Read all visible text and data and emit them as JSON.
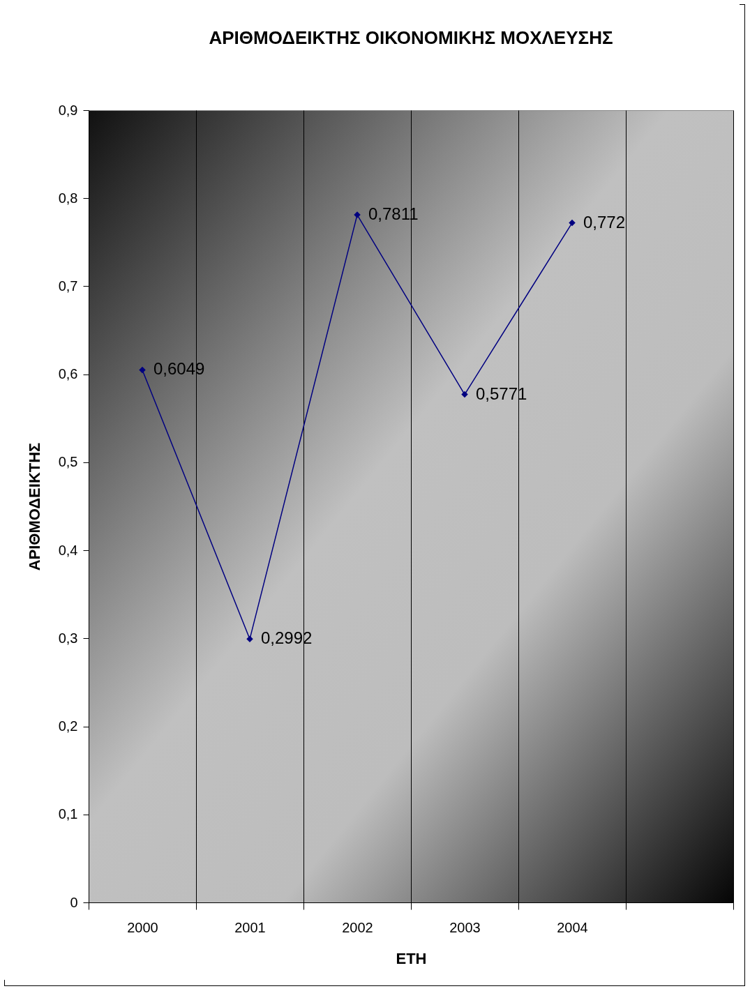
{
  "chart_data": {
    "type": "line",
    "title": "ΑΡΙΘΜΟΔΕΙΚΤΗΣ ΟΙΚΟΝΟΜΙΚΗΣ ΜΟΧΛΕΥΣΗΣ",
    "xlabel": "ΕΤΗ",
    "ylabel": "ΑΡΙΘΜΟΔΕΙΚΤΗΣ",
    "categories": [
      "2000",
      "2001",
      "2002",
      "2003",
      "2004",
      null
    ],
    "series": [
      {
        "color": "#000080",
        "values": [
          0.6049,
          0.2992,
          0.7811,
          0.5771,
          0.772,
          null
        ],
        "value_labels": [
          "0,6049",
          "0,2992",
          "0,7811",
          "0,5771",
          "0,772",
          null
        ]
      }
    ],
    "ylim": [
      0,
      0.9
    ],
    "yticks": [
      0,
      {
        "value": 0.1,
        "label": "0,1"
      },
      {
        "value": 0.2,
        "label": "0,2"
      },
      {
        "value": 0.3,
        "label": "0,3"
      },
      {
        "value": 0.4,
        "label": "0,4"
      },
      {
        "value": 0.5,
        "label": "0,5"
      },
      {
        "value": 0.6,
        "label": "0,6"
      },
      {
        "value": 0.7,
        "label": "0,7"
      },
      {
        "value": 0.8,
        "label": "0,8"
      },
      {
        "value": 0.9,
        "label": "0,9"
      }
    ],
    "grid": "x",
    "marker": "diamond",
    "line_style": "solid"
  }
}
